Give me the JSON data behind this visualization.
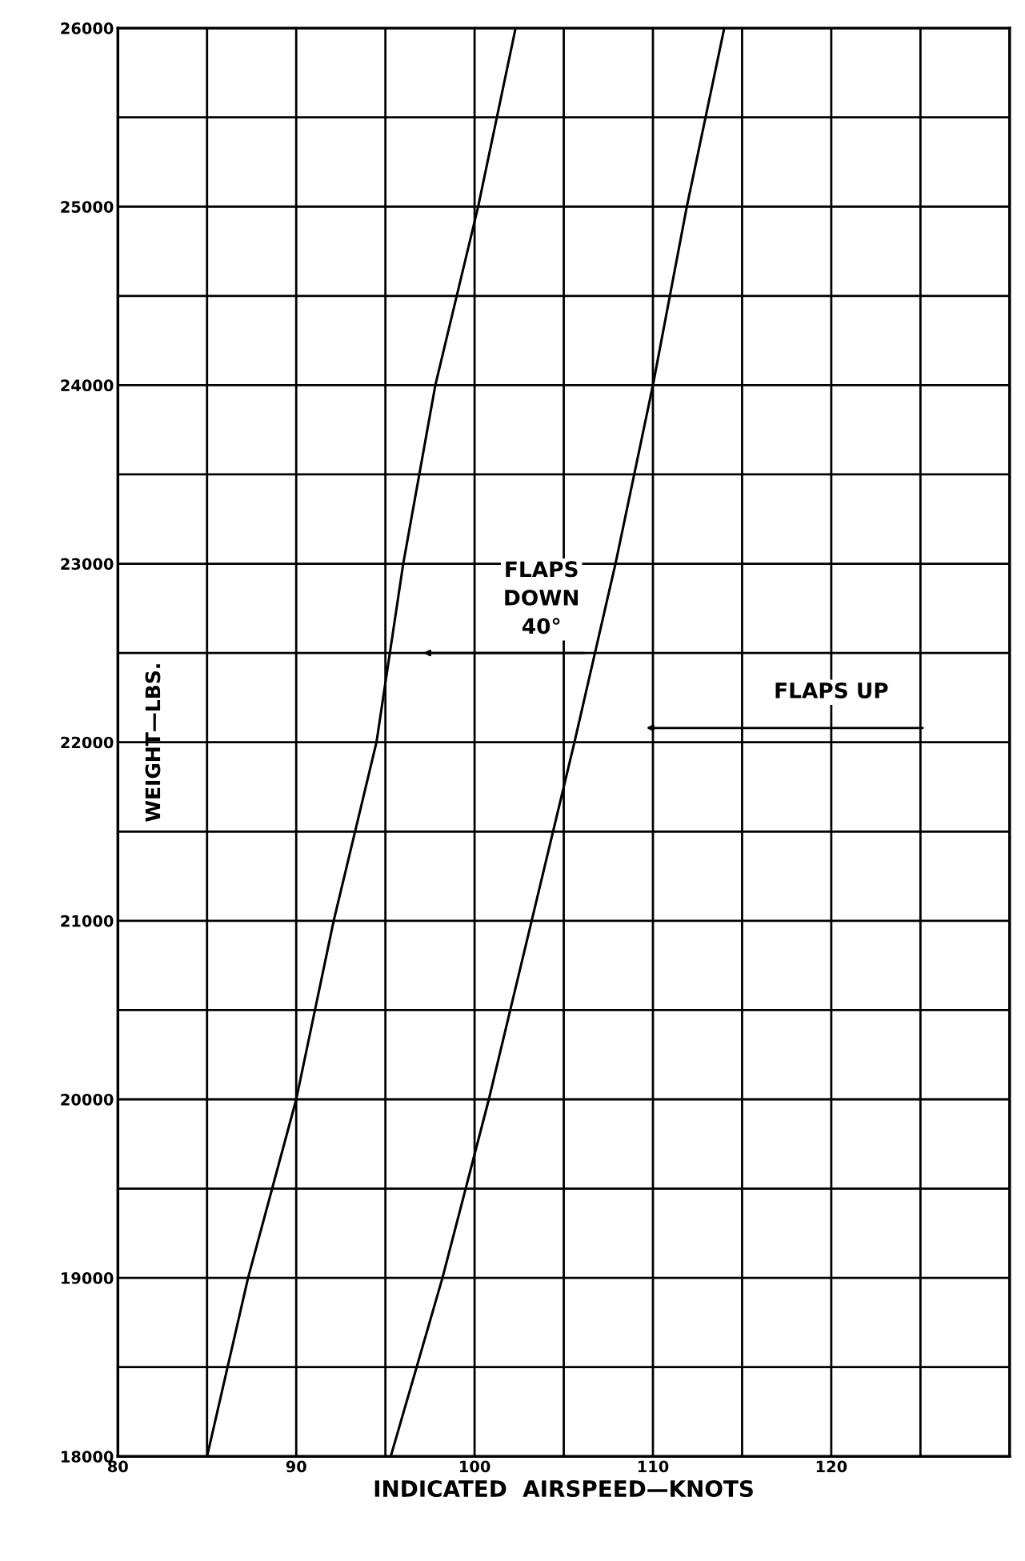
{
  "chart_data": {
    "type": "line",
    "xlabel": "INDICATED  AIRSPEED—KNOTS",
    "ylabel": "WEIGHT—LBS.",
    "series": [
      {
        "color": "#000000",
        "x": [
          85,
          87.3,
          90,
          92.1,
          94.5,
          96.0,
          97.8,
          100.2,
          102.3
        ],
        "values": [
          18000,
          19000,
          20000,
          21000,
          22000,
          23000,
          24000,
          25000,
          26000
        ]
      },
      {
        "color": "#000000",
        "x": [
          95.3,
          98.2,
          100.8,
          103.2,
          105.6,
          107.9,
          110.0,
          111.9,
          114.0
        ],
        "values": [
          18000,
          19000,
          20000,
          21000,
          22000,
          23000,
          24000,
          25000,
          26000
        ]
      }
    ],
    "annotations": [
      "FLAPS\nDOWN\n40°",
      "FLAPS UP"
    ],
    "xlim": [
      80,
      130
    ],
    "ylim": [
      18000,
      26000
    ],
    "xticks": [
      80,
      {
        "value": 85,
        "label": null
      },
      90,
      {
        "value": 95,
        "label": null
      },
      100,
      {
        "value": 105,
        "label": null
      },
      110,
      {
        "value": 115,
        "label": null
      },
      120,
      {
        "value": 125,
        "label": null
      }
    ],
    "yticks": [
      18000,
      {
        "value": 18500,
        "label": null
      },
      19000,
      {
        "value": 19500,
        "label": null
      },
      20000,
      {
        "value": 20500,
        "label": null
      },
      21000,
      {
        "value": 21500,
        "label": null
      },
      22000,
      {
        "value": 22500,
        "label": null
      },
      23000,
      {
        "value": 23500,
        "label": null
      },
      24000,
      {
        "value": 24500,
        "label": null
      },
      25000,
      {
        "value": 25500,
        "label": null
      },
      26000
    ],
    "grid": true,
    "marker": "none",
    "line_style": "solid",
    "legend": false
  }
}
